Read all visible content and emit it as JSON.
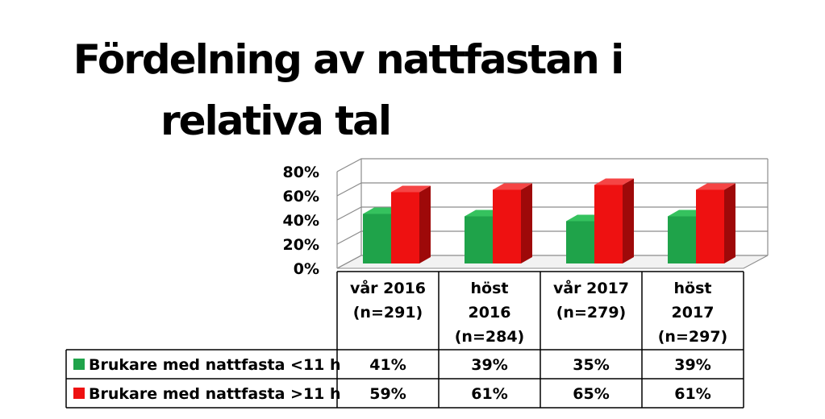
{
  "title_line1": "Fördelning av nattfastan i",
  "title_line2": "relativa tal",
  "chart_data": {
    "type": "bar",
    "title": "Fördelning av nattfastan i relativa tal",
    "categories": [
      [
        "vår 2016",
        "(n=291)"
      ],
      [
        "höst",
        "2016",
        "(n=284)"
      ],
      [
        "vår 2017",
        "(n=279)"
      ],
      [
        "höst",
        "2017",
        "(n=297)"
      ]
    ],
    "series": [
      {
        "name": "Brukare med nattfasta <11 h",
        "values": [
          41,
          39,
          35,
          39
        ],
        "labels": [
          "41%",
          "39%",
          "35%",
          "39%"
        ],
        "color": "#1fa34a",
        "dark": "#0c6e2a",
        "top": "#35c25e"
      },
      {
        "name": "Brukare med nattfasta >11 h",
        "values": [
          59,
          61,
          65,
          61
        ],
        "labels": [
          "59%",
          "61%",
          "65%",
          "61%"
        ],
        "color": "#ee1111",
        "dark": "#9e0909",
        "top": "#f54545"
      }
    ],
    "yticks": [
      "0%",
      "20%",
      "40%",
      "60%",
      "80%"
    ],
    "ylim": [
      0,
      80
    ],
    "legend": "data-table",
    "grid": true,
    "style": "3d-clustered-column"
  }
}
